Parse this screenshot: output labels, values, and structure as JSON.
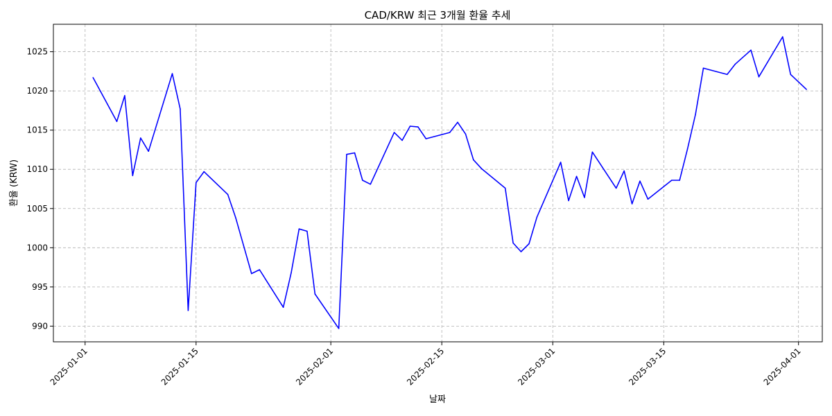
{
  "chart_data": {
    "type": "line",
    "title": "CAD/KRW 최근 3개월 환율 추세",
    "xlabel": "날짜",
    "ylabel": "환율 (KRW)",
    "grid": true,
    "line_color": "#0000ff",
    "xlim": [
      "2024-12-28",
      "2025-04-04"
    ],
    "ylim": [
      988,
      1028.5
    ],
    "x_ticks": [
      "2025-01-01",
      "2025-01-15",
      "2025-02-01",
      "2025-02-15",
      "2025-03-01",
      "2025-03-15",
      "2025-04-01"
    ],
    "y_ticks": [
      990,
      995,
      1000,
      1005,
      1010,
      1015,
      1020,
      1025
    ],
    "series": [
      {
        "values": [
          [
            "2025-01-02",
            1021.7
          ],
          [
            "2025-01-05",
            1016.1
          ],
          [
            "2025-01-06",
            1019.4
          ],
          [
            "2025-01-07",
            1009.2
          ],
          [
            "2025-01-08",
            1014.0
          ],
          [
            "2025-01-09",
            1012.3
          ],
          [
            "2025-01-12",
            1022.2
          ],
          [
            "2025-01-13",
            1017.7
          ],
          [
            "2025-01-14",
            992.0
          ],
          [
            "2025-01-15",
            1008.3
          ],
          [
            "2025-01-16",
            1009.7
          ],
          [
            "2025-01-19",
            1006.8
          ],
          [
            "2025-01-20",
            1003.8
          ],
          [
            "2025-01-22",
            996.7
          ],
          [
            "2025-01-23",
            997.2
          ],
          [
            "2025-01-26",
            992.4
          ],
          [
            "2025-01-27",
            996.8
          ],
          [
            "2025-01-28",
            1002.4
          ],
          [
            "2025-01-29",
            1002.1
          ],
          [
            "2025-01-30",
            994.1
          ],
          [
            "2025-02-02",
            989.7
          ],
          [
            "2025-02-03",
            1011.9
          ],
          [
            "2025-02-04",
            1012.1
          ],
          [
            "2025-02-05",
            1008.6
          ],
          [
            "2025-02-06",
            1008.1
          ],
          [
            "2025-02-09",
            1014.7
          ],
          [
            "2025-02-10",
            1013.7
          ],
          [
            "2025-02-11",
            1015.5
          ],
          [
            "2025-02-12",
            1015.4
          ],
          [
            "2025-02-13",
            1013.9
          ],
          [
            "2025-02-16",
            1014.7
          ],
          [
            "2025-02-17",
            1016.0
          ],
          [
            "2025-02-18",
            1014.5
          ],
          [
            "2025-02-19",
            1011.2
          ],
          [
            "2025-02-20",
            1010.1
          ],
          [
            "2025-02-23",
            1007.6
          ],
          [
            "2025-02-24",
            1000.6
          ],
          [
            "2025-02-25",
            999.5
          ],
          [
            "2025-02-26",
            1000.5
          ],
          [
            "2025-02-27",
            1003.9
          ],
          [
            "2025-03-02",
            1010.9
          ],
          [
            "2025-03-03",
            1006.0
          ],
          [
            "2025-03-04",
            1009.1
          ],
          [
            "2025-03-05",
            1006.4
          ],
          [
            "2025-03-06",
            1012.2
          ],
          [
            "2025-03-09",
            1007.6
          ],
          [
            "2025-03-10",
            1009.8
          ],
          [
            "2025-03-11",
            1005.6
          ],
          [
            "2025-03-12",
            1008.5
          ],
          [
            "2025-03-13",
            1006.2
          ],
          [
            "2025-03-16",
            1008.6
          ],
          [
            "2025-03-17",
            1008.6
          ],
          [
            "2025-03-18",
            1012.6
          ],
          [
            "2025-03-19",
            1017.0
          ],
          [
            "2025-03-20",
            1022.9
          ],
          [
            "2025-03-23",
            1022.1
          ],
          [
            "2025-03-24",
            1023.4
          ],
          [
            "2025-03-26",
            1025.2
          ],
          [
            "2025-03-27",
            1021.8
          ],
          [
            "2025-03-30",
            1026.9
          ],
          [
            "2025-03-31",
            1022.1
          ],
          [
            "2025-04-02",
            1020.2
          ]
        ]
      }
    ]
  }
}
